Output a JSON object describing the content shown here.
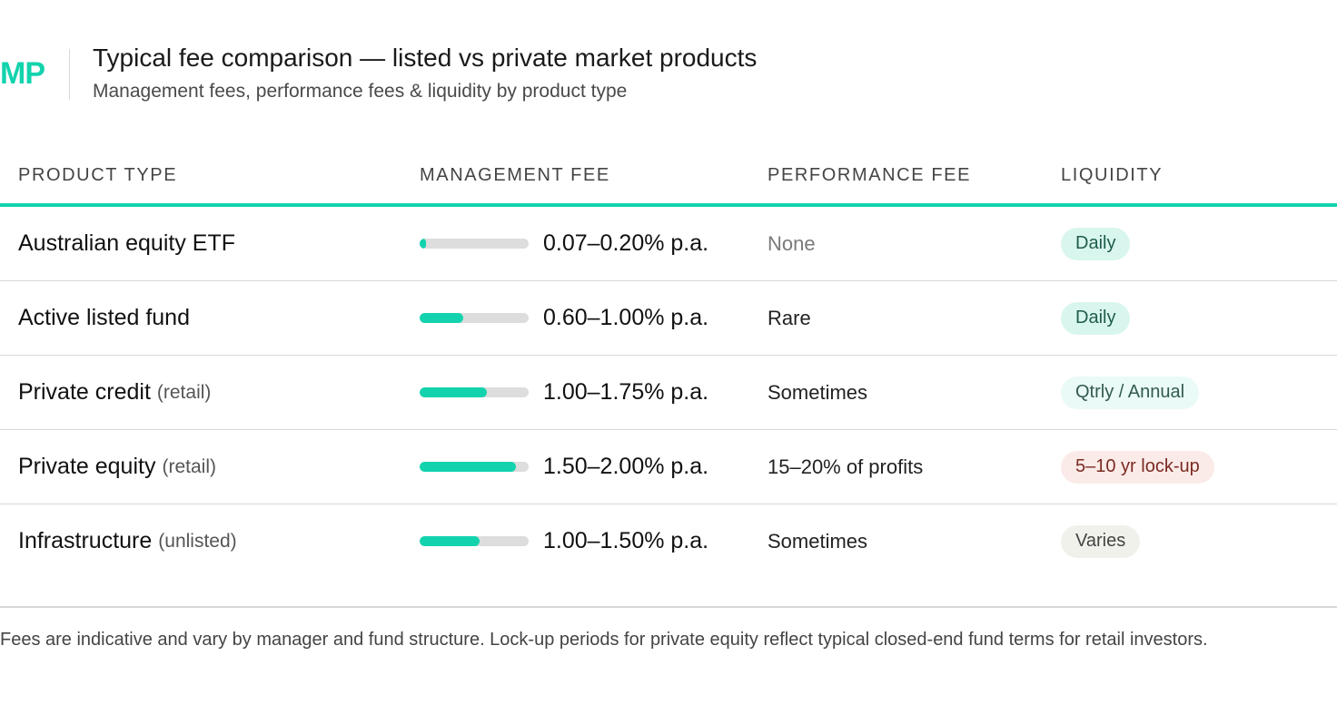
{
  "header": {
    "logo": "MP",
    "title": "Typical fee comparison — listed vs private market products",
    "subtitle": "Management fees, performance fees & liquidity by product type"
  },
  "table": {
    "columns": [
      "PRODUCT TYPE",
      "MANAGEMENT FEE",
      "PERFORMANCE FEE",
      "LIQUIDITY"
    ],
    "rows": [
      {
        "product": "Australian equity ETF",
        "qualifier": "",
        "fee_text": "0.07–0.20% p.a.",
        "fee_bar_fraction": 0.06,
        "performance": "None",
        "performance_muted": true,
        "liquidity": "Daily",
        "liquidity_kind": "daily"
      },
      {
        "product": "Active listed fund",
        "qualifier": "",
        "fee_text": "0.60–1.00% p.a.",
        "fee_bar_fraction": 0.4,
        "performance": "Rare",
        "performance_muted": false,
        "liquidity": "Daily",
        "liquidity_kind": "daily"
      },
      {
        "product": "Private credit",
        "qualifier": "(retail)",
        "fee_text": "1.00–1.75% p.a.",
        "fee_bar_fraction": 0.62,
        "performance": "Sometimes",
        "performance_muted": false,
        "liquidity": "Qtrly / Annual",
        "liquidity_kind": "qtrly"
      },
      {
        "product": "Private equity",
        "qualifier": "(retail)",
        "fee_text": "1.50–2.00% p.a.",
        "fee_bar_fraction": 0.88,
        "performance": "15–20% of profits",
        "performance_muted": false,
        "liquidity": "5–10 yr lock-up",
        "liquidity_kind": "lockup"
      },
      {
        "product": "Infrastructure",
        "qualifier": "(unlisted)",
        "fee_text": "1.00–1.50% p.a.",
        "fee_bar_fraction": 0.55,
        "performance": "Sometimes",
        "performance_muted": false,
        "liquidity": "Varies",
        "liquidity_kind": "varies"
      }
    ]
  },
  "footnote": "Fees are indicative and vary by manager and fund structure. Lock-up periods for private equity reflect typical closed-end fund terms for retail investors.",
  "colors": {
    "accent": "#12d3ad",
    "bar_track": "#dddddd"
  }
}
